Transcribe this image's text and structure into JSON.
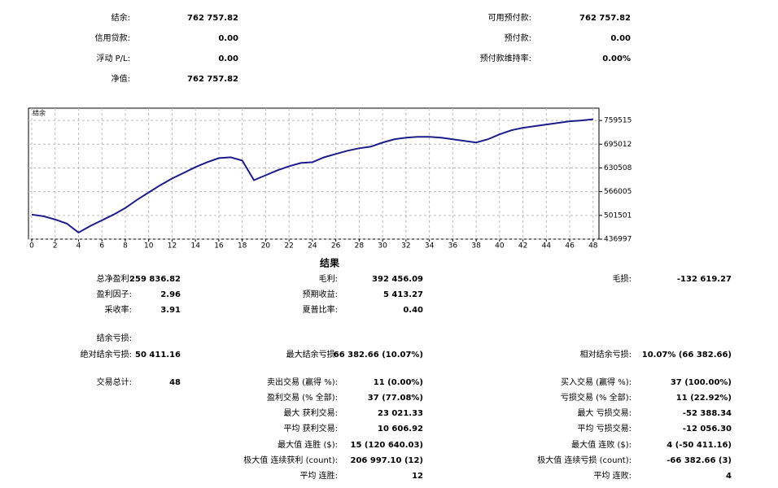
{
  "summary": {
    "left": [
      [
        "结余:",
        "762 757.82"
      ],
      [
        "信用贷款:",
        "0.00"
      ],
      [
        "浮动 P/L:",
        "0.00"
      ],
      [
        "净值:",
        "762 757.82"
      ]
    ],
    "right": [
      [
        "可用预付款:",
        "762 757.82"
      ],
      [
        "预付款:",
        "0.00"
      ],
      [
        "预付款维持率:",
        "0.00%"
      ]
    ]
  },
  "chart_data": {
    "type": "line",
    "title": "结余",
    "x": [
      0,
      1,
      2,
      3,
      4,
      5,
      6,
      7,
      8,
      9,
      10,
      11,
      12,
      13,
      14,
      15,
      16,
      17,
      18,
      19,
      20,
      21,
      22,
      23,
      24,
      25,
      26,
      27,
      28,
      29,
      30,
      31,
      32,
      33,
      34,
      35,
      36,
      37,
      38,
      39,
      40,
      41,
      42,
      43,
      44,
      45,
      46,
      47,
      48
    ],
    "series": [
      {
        "name": "结余",
        "color": "#1c1c8a",
        "values": [
          503726,
          499277,
          490380,
          479259,
          454791,
          472586,
          488156,
          503726,
          521520,
          543763,
          563782,
          583801,
          601595,
          617165,
          632735,
          646081,
          657203,
          659427,
          650530,
          597147,
          610492,
          623838,
          634960,
          643857,
          646081,
          659427,
          668324,
          677221,
          683894,
          688343,
          699464,
          708362,
          712810,
          715035,
          715035,
          712810,
          708362,
          703913,
          699464,
          708362,
          721707,
          732829,
          739502,
          743950,
          748399,
          752848,
          757296,
          759521,
          762758
        ]
      }
    ],
    "xlim": [
      0,
      48.5
    ],
    "xticks": [
      0,
      2,
      4,
      6,
      8,
      10,
      12,
      14,
      16,
      18,
      20,
      22,
      24,
      26,
      28,
      30,
      32,
      34,
      36,
      38,
      40,
      42,
      44,
      46,
      48
    ],
    "ylim": [
      436997,
      792880
    ],
    "yticks": [
      436997,
      501501,
      566005,
      630508,
      695012,
      759515
    ],
    "grid": true
  },
  "results": {
    "title": "结果",
    "rows": [
      {
        "a": [
          "总净盈利:",
          "259 836.82"
        ],
        "b": [
          "毛利:",
          "392 456.09"
        ],
        "c": [
          "毛损:",
          "-132 619.27"
        ]
      },
      {
        "a": [
          "盈利因子:",
          "2.96"
        ],
        "b": [
          "预期收益:",
          "5 413.27"
        ]
      },
      {
        "a": [
          "采收率:",
          "3.91"
        ],
        "b": [
          "夏普比率:",
          "0.40"
        ]
      },
      {
        "a": [
          "结余亏损:"
        ]
      },
      {
        "a": [
          "绝对结余亏损:",
          "50 411.16"
        ],
        "b": [
          "最大结余亏损:",
          "66 382.66 (10.07%)"
        ],
        "c": [
          "相对结余亏损:",
          "10.07% (66 382.66)"
        ]
      },
      {
        "a": [
          "交易总计:",
          "48"
        ],
        "b": [
          "卖出交易 (赢得 %):",
          "11 (0.00%)"
        ],
        "c": [
          "买入交易 (赢得 %):",
          "37 (100.00%)"
        ]
      },
      {
        "b": [
          "盈利交易 (% 全部):",
          "37 (77.08%)"
        ],
        "c": [
          "亏损交易 (% 全部):",
          "11 (22.92%)"
        ]
      },
      {
        "b": [
          "最大 获利交易:",
          "23 021.33"
        ],
        "c": [
          "最大 亏损交易:",
          "-52 388.34"
        ]
      },
      {
        "b": [
          "平均 获利交易:",
          "10 606.92"
        ],
        "c": [
          "平均 亏损交易:",
          "-12 056.30"
        ]
      },
      {
        "b": [
          "最大值 连胜 ($):",
          "15 (120 640.03)"
        ],
        "c": [
          "最大值 连败 ($):",
          "4 (-50 411.16)"
        ]
      },
      {
        "b": [
          "极大值 连续获利 (count):",
          "206 997.10 (12)"
        ],
        "c": [
          "极大值 连续亏损 (count):",
          "-66 382.66 (3)"
        ]
      },
      {
        "b": [
          "平均 连胜:",
          "12"
        ],
        "c": [
          "平均 连败:",
          "4"
        ]
      }
    ]
  }
}
